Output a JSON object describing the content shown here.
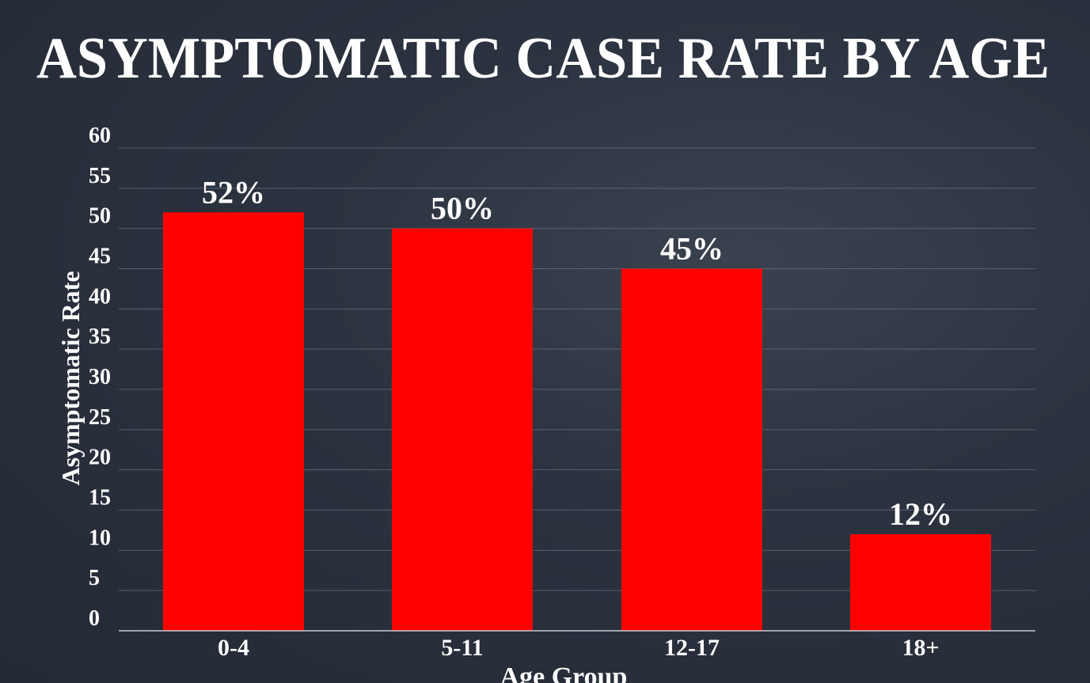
{
  "chart_data": {
    "type": "bar",
    "title": "ASYMPTOMATIC CASE RATE BY AGE",
    "xlabel": "Age Group",
    "ylabel": "Asymptomatic Rate",
    "categories": [
      "0-4",
      "5-11",
      "12-17",
      "18+"
    ],
    "values": [
      52,
      50,
      45,
      12
    ],
    "value_labels": [
      "52%",
      "50%",
      "45%",
      "12%"
    ],
    "y_ticks": [
      "0",
      "5",
      "10",
      "15",
      "20",
      "25",
      "30",
      "35",
      "40",
      "45",
      "50",
      "55",
      "60"
    ],
    "ylim": [
      0,
      60
    ],
    "grid": true,
    "legend": "none",
    "colors": {
      "bar": "#ff0000",
      "background": "#2c3340",
      "grid": "#6b7380",
      "axis": "#c8ccd2",
      "text": "#ffffff"
    }
  }
}
